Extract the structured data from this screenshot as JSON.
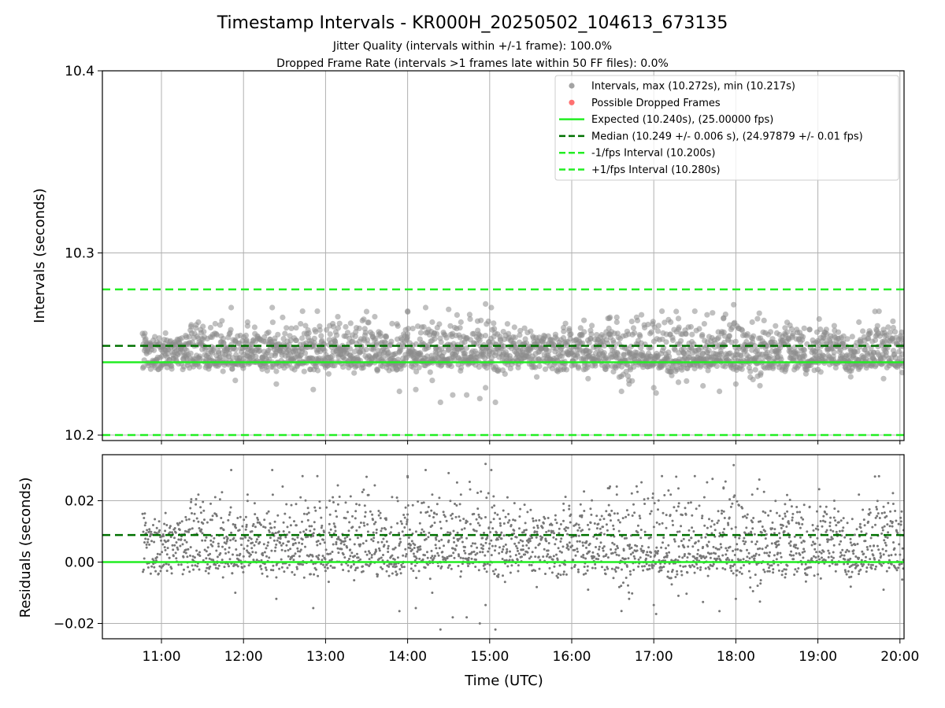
{
  "chart_data": [
    {
      "type": "scatter",
      "title": "Timestamp Intervals - KR000H_20250502_104613_673135",
      "subtitles": [
        "Jitter Quality (intervals within +/-1 frame): 100.0%",
        "Dropped Frame Rate (intervals >1 frames late within 50 FF files): 0.0%"
      ],
      "ylabel": "Intervals (seconds)",
      "ylim": [
        10.197,
        10.4
      ],
      "xlim_hours": [
        10.28,
        20.05
      ],
      "yticks": [
        "10.2",
        "10.3",
        "10.4"
      ],
      "ytick_values": [
        10.2,
        10.3,
        10.4
      ],
      "grid": true,
      "legend_position": "upper-right",
      "legend": [
        {
          "label": "Intervals, max (10.272s), min (10.217s)",
          "marker": "dot",
          "color": "#8c8c8c"
        },
        {
          "label": "Possible Dropped Frames",
          "marker": "dot",
          "color": "#ff4d4d"
        },
        {
          "label": "Expected (10.240s), (25.00000 fps)",
          "marker": "solid",
          "color": "#22ee22"
        },
        {
          "label": "Median (10.249 +/- 0.006 s), (24.97879 +/- 0.01 fps)",
          "marker": "dashed",
          "color": "#007000"
        },
        {
          "label": "-1/fps Interval (10.200s)",
          "marker": "dashed",
          "color": "#22ee22"
        },
        {
          "label": "+1/fps Interval (10.280s)",
          "marker": "dashed",
          "color": "#22ee22"
        }
      ],
      "reference_lines": {
        "expected": 10.24,
        "median": 10.249,
        "minus_one_fps": 10.2,
        "plus_one_fps": 10.28
      },
      "series": [
        {
          "name": "Intervals, max (10.272s), min (10.217s)",
          "color": "#8c8c8c",
          "max": 10.272,
          "min": 10.217,
          "baseline": 10.249,
          "x_start": "10:46",
          "x_end": "20:05",
          "points": [
            [
              10.8,
              10.252
            ],
            [
              11.05,
              10.256
            ],
            [
              11.3,
              10.244
            ],
            [
              11.45,
              10.262
            ],
            [
              11.6,
              10.259
            ],
            [
              11.85,
              10.27
            ],
            [
              12.05,
              10.262
            ],
            [
              12.35,
              10.27
            ],
            [
              12.4,
              10.235
            ],
            [
              12.72,
              10.268
            ],
            [
              12.9,
              10.268
            ],
            [
              13.05,
              10.26
            ],
            [
              13.15,
              10.265
            ],
            [
              13.3,
              10.244
            ],
            [
              13.6,
              10.265
            ],
            [
              13.87,
              10.261
            ],
            [
              14.0,
              10.268
            ],
            [
              14.22,
              10.27
            ],
            [
              14.3,
              10.262
            ],
            [
              14.5,
              10.269
            ],
            [
              14.65,
              10.262
            ],
            [
              14.95,
              10.272
            ],
            [
              15.02,
              10.27
            ],
            [
              14.3,
              10.23
            ],
            [
              14.4,
              10.218
            ],
            [
              14.55,
              10.222
            ],
            [
              14.72,
              10.222
            ],
            [
              14.88,
              10.22
            ],
            [
              15.07,
              10.218
            ],
            [
              14.95,
              10.226
            ],
            [
              14.1,
              10.225
            ],
            [
              13.9,
              10.224
            ],
            [
              12.85,
              10.225
            ],
            [
              12.4,
              10.228
            ],
            [
              11.9,
              10.23
            ],
            [
              11.75,
              10.235
            ],
            [
              15.5,
              10.257
            ],
            [
              15.9,
              10.259
            ],
            [
              16.15,
              10.263
            ],
            [
              16.55,
              10.262
            ],
            [
              16.85,
              10.266
            ],
            [
              17.1,
              10.268
            ],
            [
              17.3,
              10.264
            ],
            [
              17.5,
              10.268
            ],
            [
              17.65,
              10.266
            ],
            [
              17.85,
              10.264
            ],
            [
              18.2,
              10.262
            ],
            [
              18.5,
              10.256
            ],
            [
              18.9,
              10.258
            ],
            [
              19.2,
              10.26
            ],
            [
              19.5,
              10.262
            ],
            [
              19.8,
              10.258
            ],
            [
              16.7,
              10.228
            ],
            [
              17.0,
              10.226
            ],
            [
              17.3,
              10.229
            ],
            [
              17.6,
              10.227
            ],
            [
              17.8,
              10.224
            ],
            [
              18.0,
              10.228
            ],
            [
              18.3,
              10.233
            ],
            [
              18.6,
              10.235
            ],
            [
              19.0,
              10.236
            ],
            [
              19.4,
              10.232
            ],
            [
              19.8,
              10.231
            ],
            [
              16.2,
              10.231
            ],
            [
              15.9,
              10.236
            ]
          ]
        },
        {
          "name": "Possible Dropped Frames",
          "color": "#ff4d4d",
          "points": []
        }
      ]
    },
    {
      "type": "scatter",
      "ylabel": "Residuals (seconds)",
      "xlabel": "Time (UTC)",
      "ylim": [
        -0.025,
        0.035
      ],
      "yticks": [
        "−0.02",
        "0.00",
        "0.02"
      ],
      "ytick_values": [
        -0.02,
        0.0,
        0.02
      ],
      "xticks": [
        "11:00",
        "12:00",
        "13:00",
        "14:00",
        "15:00",
        "16:00",
        "17:00",
        "18:00",
        "19:00",
        "20:00"
      ],
      "xtick_values_hours": [
        11,
        12,
        13,
        14,
        15,
        16,
        17,
        18,
        19,
        20
      ],
      "grid": true,
      "reference_lines": {
        "zero": 0.0,
        "median_residual": 0.0088
      },
      "series": [
        {
          "name": "Residuals",
          "color": "#777777",
          "max": 0.032,
          "min": -0.023,
          "baseline": 0.0088
        }
      ]
    }
  ],
  "colors": {
    "points": "#8c8c8c",
    "residual_points": "#777777",
    "expected": "#22ee22",
    "median": "#007000",
    "dropped": "#ff4d4d"
  }
}
